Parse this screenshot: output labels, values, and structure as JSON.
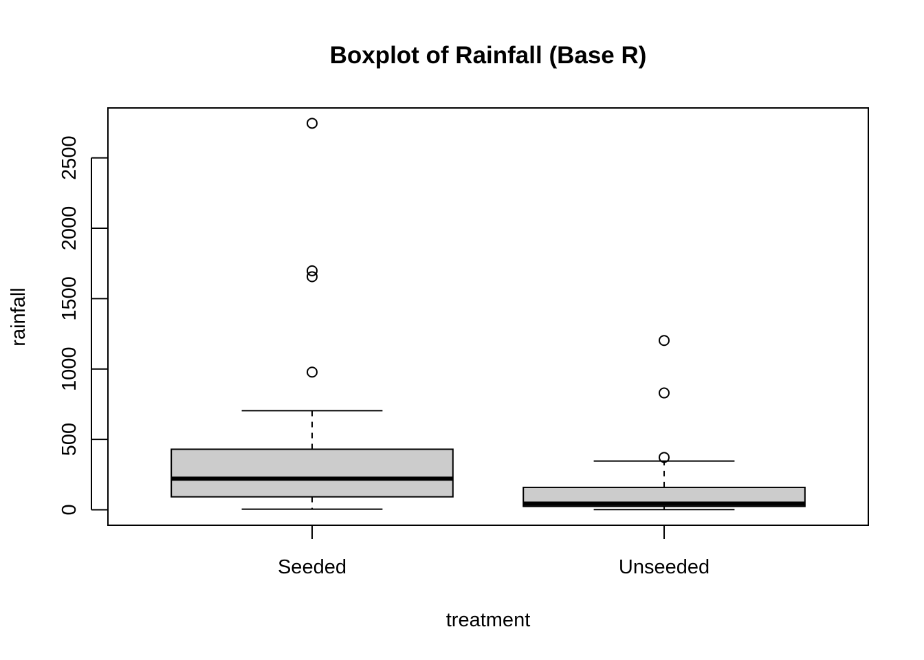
{
  "chart_data": {
    "type": "boxplot",
    "title": "Boxplot of Rainfall (Base R)",
    "xlabel": "treatment",
    "ylabel": "rainfall",
    "categories": [
      "Seeded",
      "Unseeded"
    ],
    "ylim": [
      -110,
      2855
    ],
    "yticks": [
      0,
      500,
      1000,
      1500,
      2000,
      2500
    ],
    "ytick_labels": [
      "0",
      "500",
      "1000",
      "1500",
      "2000",
      "2500"
    ],
    "grid": false,
    "legend": "none",
    "box_fill": "#cccccc",
    "line_color": "#000000",
    "boxes": [
      {
        "category": "Seeded",
        "whisker_low": 4,
        "q1": 92,
        "median": 221,
        "q3": 430,
        "whisker_high": 704,
        "outliers": [
          978,
          1656,
          1698,
          2746
        ]
      },
      {
        "category": "Unseeded",
        "whisker_low": 1,
        "q1": 24,
        "median": 44,
        "q3": 159,
        "whisker_high": 346,
        "outliers": [
          372,
          830,
          1203
        ]
      }
    ]
  }
}
